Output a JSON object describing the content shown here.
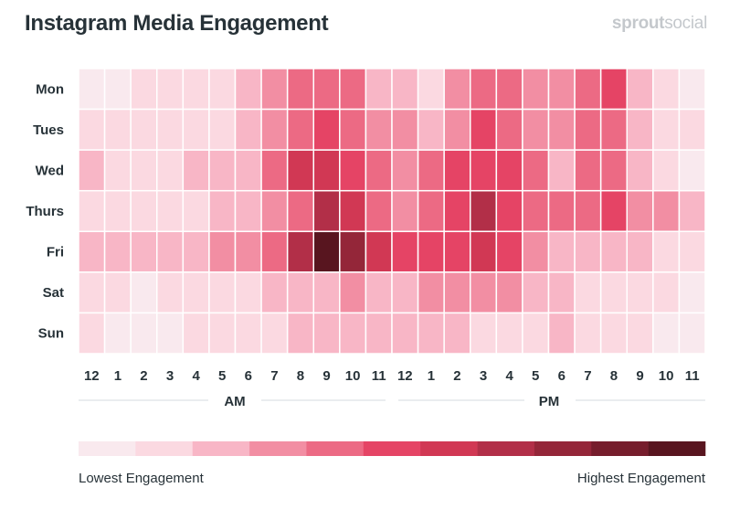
{
  "brand": {
    "part1": "sprout",
    "part2": "social"
  },
  "chart_data": {
    "type": "heatmap",
    "title": "Instagram Media Engagement",
    "rows": [
      "Mon",
      "Tues",
      "Wed",
      "Thurs",
      "Fri",
      "Sat",
      "Sun"
    ],
    "columns": [
      "12",
      "1",
      "2",
      "3",
      "4",
      "5",
      "6",
      "7",
      "8",
      "9",
      "10",
      "11",
      "12",
      "1",
      "2",
      "3",
      "4",
      "5",
      "6",
      "7",
      "8",
      "9",
      "10",
      "11"
    ],
    "period_labels": [
      "AM",
      "PM"
    ],
    "scale_levels": 11,
    "values": [
      [
        0,
        0,
        1,
        1,
        1,
        1,
        2,
        3,
        4,
        4,
        4,
        2,
        2,
        1,
        3,
        4,
        4,
        3,
        3,
        4,
        5,
        2,
        1,
        0
      ],
      [
        1,
        1,
        1,
        1,
        1,
        1,
        2,
        3,
        4,
        5,
        4,
        3,
        3,
        2,
        3,
        5,
        4,
        3,
        3,
        4,
        4,
        2,
        1,
        1
      ],
      [
        2,
        1,
        1,
        1,
        2,
        2,
        2,
        4,
        6,
        6,
        5,
        4,
        3,
        4,
        5,
        5,
        5,
        4,
        2,
        4,
        4,
        2,
        1,
        0
      ],
      [
        1,
        1,
        1,
        1,
        1,
        2,
        2,
        3,
        4,
        7,
        6,
        4,
        3,
        4,
        5,
        7,
        5,
        4,
        4,
        4,
        5,
        3,
        3,
        2
      ],
      [
        2,
        2,
        2,
        2,
        2,
        3,
        3,
        4,
        7,
        10,
        8,
        6,
        5,
        5,
        5,
        6,
        5,
        3,
        2,
        2,
        2,
        2,
        1,
        1
      ],
      [
        1,
        1,
        0,
        1,
        1,
        1,
        1,
        2,
        2,
        2,
        3,
        2,
        2,
        3,
        3,
        3,
        3,
        2,
        2,
        1,
        1,
        1,
        1,
        0
      ],
      [
        1,
        0,
        0,
        0,
        1,
        1,
        1,
        1,
        2,
        2,
        2,
        2,
        2,
        2,
        2,
        1,
        1,
        1,
        2,
        1,
        1,
        1,
        0,
        0
      ]
    ],
    "palette": [
      "#f9e9ee",
      "#fbd9e1",
      "#f8b6c6",
      "#f28ea3",
      "#ec6a84",
      "#e54465",
      "#d13854",
      "#b22f48",
      "#942639",
      "#761d2c",
      "#58151f"
    ],
    "legend": {
      "low_label": "Lowest Engagement",
      "high_label": "Highest Engagement"
    }
  }
}
